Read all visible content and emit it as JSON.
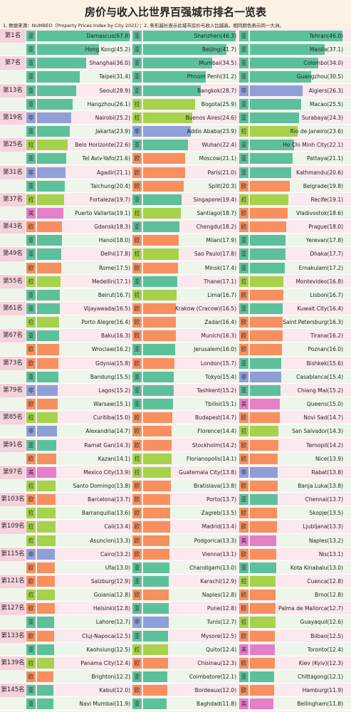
{
  "title": "房价与收入比世界百强城市排名一览表",
  "note": "1, 数据来源：NUMBEO（Property Prices Index by City 2021）；2, 条形越长表示此城市房价与收入比越高，相同颜色表示同一大洲。",
  "region_colors": {
    "亚": "#5cc19a",
    "拉": "#a6d24c",
    "非": "#8f9fd8",
    "欧": "#f7905e",
    "美": "#e57fc8"
  },
  "ranks": [
    "第1名",
    "第7名",
    "第13名",
    "第19名",
    "第25名",
    "第31名",
    "第37名",
    "第43名",
    "第49名",
    "第55名",
    "第61名",
    "第67名",
    "第73名",
    "第79名",
    "第85名",
    "第91名",
    "第97名",
    "第103名",
    "第109名",
    "第115名",
    "第121名",
    "第127名",
    "第133名",
    "第139名",
    "第145名"
  ],
  "rows": [
    [
      {
        "region": "亚",
        "city": "Damascus",
        "value": 67.8
      },
      {
        "region": "亚",
        "city": "Shenzhen",
        "value": 46.3
      },
      {
        "region": "亚",
        "city": "Tehran",
        "value": 46.0,
        "value_label": "46.0"
      }
    ],
    [
      {
        "region": "亚",
        "city": "Hong Kong",
        "value": 45.2
      },
      {
        "region": "亚",
        "city": "Beijing",
        "value": 41.7
      },
      {
        "region": "亚",
        "city": "Manila",
        "value": 37.1
      }
    ],
    [
      {
        "region": "亚",
        "city": "Shanghai",
        "value": 36.0,
        "value_label": "36.0"
      },
      {
        "region": "亚",
        "city": "Mumbai",
        "value": 34.5
      },
      {
        "region": "亚",
        "city": "Colombo",
        "value": 34.0,
        "value_label": "34.0"
      }
    ],
    [
      {
        "region": "亚",
        "city": "Taipei",
        "value": 31.4
      },
      {
        "region": "亚",
        "city": "Phnom Penh",
        "value": 31.2
      },
      {
        "region": "亚",
        "city": "Guangzhou",
        "value": 30.5
      }
    ],
    [
      {
        "region": "亚",
        "city": "Seoul",
        "value": 28.9
      },
      {
        "region": "亚",
        "city": "Bangkok",
        "value": 28.7
      },
      {
        "region": "非",
        "city": "Algiers",
        "value": 26.3
      }
    ],
    [
      {
        "region": "亚",
        "city": "Hangzhou",
        "value": 26.1
      },
      {
        "region": "拉",
        "city": "Bogota",
        "value": 25.9
      },
      {
        "region": "亚",
        "city": "Macao",
        "value": 25.5
      }
    ],
    [
      {
        "region": "非",
        "city": "Nairobi",
        "value": 25.2
      },
      {
        "region": "拉",
        "city": "Buenos Aires",
        "value": 24.6
      },
      {
        "region": "亚",
        "city": "Surabaya",
        "value": 24.3
      }
    ],
    [
      {
        "region": "亚",
        "city": "Jakarta",
        "value": 23.9
      },
      {
        "region": "非",
        "city": "Addis Ababa",
        "value": 23.9
      },
      {
        "region": "拉",
        "city": "Rio de Janeiro",
        "value": 23.6
      }
    ],
    [
      {
        "region": "拉",
        "city": "Belo Horizonte",
        "value": 22.6
      },
      {
        "region": "亚",
        "city": "Wuhan",
        "value": 22.4
      },
      {
        "region": "亚",
        "city": "Ho Chi Minh City",
        "value": 22.1
      }
    ],
    [
      {
        "region": "亚",
        "city": "Tel Aviv-Yafo",
        "value": 21.6
      },
      {
        "region": "欧",
        "city": "Moscow",
        "value": 21.1
      },
      {
        "region": "亚",
        "city": "Pattaya",
        "value": 21.1
      }
    ],
    [
      {
        "region": "非",
        "city": "Agadir",
        "value": 21.1
      },
      {
        "region": "欧",
        "city": "Paris",
        "value": 21.0,
        "value_label": "21.0"
      },
      {
        "region": "亚",
        "city": "Kathmandu",
        "value": 20.6
      }
    ],
    [
      {
        "region": "亚",
        "city": "Taichung",
        "value": 20.4
      },
      {
        "region": "欧",
        "city": "Split",
        "value": 20.3
      },
      {
        "region": "欧",
        "city": "Belgrade",
        "value": 19.8
      }
    ],
    [
      {
        "region": "拉",
        "city": "Fortaleza",
        "value": 19.7
      },
      {
        "region": "亚",
        "city": "Singapore",
        "value": 19.4
      },
      {
        "region": "拉",
        "city": "Recife",
        "value": 19.1
      }
    ],
    [
      {
        "region": "美",
        "city": "Puerto Vallarta",
        "value": 19.1
      },
      {
        "region": "拉",
        "city": "Santiago",
        "value": 18.7
      },
      {
        "region": "欧",
        "city": "Vladivostok",
        "value": 18.6
      }
    ],
    [
      {
        "region": "欧",
        "city": "Gdansk",
        "value": 18.3
      },
      {
        "region": "亚",
        "city": "Chengdu",
        "value": 18.2
      },
      {
        "region": "欧",
        "city": "Prague",
        "value": 18.0,
        "value_label": "18.0"
      }
    ],
    [
      {
        "region": "亚",
        "city": "Hanoi",
        "value": 18.0,
        "value_label": "18.0"
      },
      {
        "region": "欧",
        "city": "Milan",
        "value": 17.9
      },
      {
        "region": "亚",
        "city": "Yerevan",
        "value": 17.8
      }
    ],
    [
      {
        "region": "亚",
        "city": "Delhi",
        "value": 17.8
      },
      {
        "region": "拉",
        "city": "Sao Paulo",
        "value": 17.8
      },
      {
        "region": "亚",
        "city": "Dhaka",
        "value": 17.7
      }
    ],
    [
      {
        "region": "欧",
        "city": "Rome",
        "value": 17.5
      },
      {
        "region": "欧",
        "city": "Minsk",
        "value": 17.4
      },
      {
        "region": "亚",
        "city": "Ernakulam",
        "value": 17.2
      }
    ],
    [
      {
        "region": "拉",
        "city": "Medellin",
        "value": 17.1
      },
      {
        "region": "亚",
        "city": "Thane",
        "value": 17.1
      },
      {
        "region": "拉",
        "city": "Montevideo",
        "value": 16.8
      }
    ],
    [
      {
        "region": "亚",
        "city": "Beirut",
        "value": 16.7
      },
      {
        "region": "拉",
        "city": "Lima",
        "value": 16.7
      },
      {
        "region": "欧",
        "city": "Lisbon",
        "value": 16.7
      }
    ],
    [
      {
        "region": "亚",
        "city": "Vijayawada",
        "value": 16.5
      },
      {
        "region": "欧",
        "city": "Krakow (Cracow)",
        "value": 16.5
      },
      {
        "region": "亚",
        "city": "Kuwait City",
        "value": 16.4
      }
    ],
    [
      {
        "region": "拉",
        "city": "Porto Alegre",
        "value": 16.4
      },
      {
        "region": "欧",
        "city": "Zadar",
        "value": 16.4
      },
      {
        "region": "欧",
        "city": "Saint Petersburg",
        "value": 16.3
      }
    ],
    [
      {
        "region": "亚",
        "city": "Baku",
        "value": 16.3
      },
      {
        "region": "欧",
        "city": "Munich",
        "value": 16.3
      },
      {
        "region": "欧",
        "city": "Tirana",
        "value": 16.2
      }
    ],
    [
      {
        "region": "欧",
        "city": "Wroclaw",
        "value": 16.2
      },
      {
        "region": "亚",
        "city": "Jerusalem",
        "value": 16.0,
        "value_label": "16.0"
      },
      {
        "region": "欧",
        "city": "Poznan",
        "value": 16.0,
        "value_label": "16.0"
      }
    ],
    [
      {
        "region": "欧",
        "city": "Gdynia",
        "value": 15.8
      },
      {
        "region": "欧",
        "city": "London",
        "value": 15.7
      },
      {
        "region": "亚",
        "city": "Bishkek",
        "value": 15.6
      }
    ],
    [
      {
        "region": "亚",
        "city": "Bandung",
        "value": 15.5
      },
      {
        "region": "亚",
        "city": "Tokyo",
        "value": 15.4
      },
      {
        "region": "非",
        "city": "Casablanca",
        "value": 15.4
      }
    ],
    [
      {
        "region": "非",
        "city": "Lagos",
        "value": 15.2
      },
      {
        "region": "亚",
        "city": "Tashkent",
        "value": 15.2
      },
      {
        "region": "亚",
        "city": "Chiang Mai",
        "value": 15.2
      }
    ],
    [
      {
        "region": "欧",
        "city": "Warsaw",
        "value": 15.1
      },
      {
        "region": "亚",
        "city": "Tbilisi",
        "value": 15.1
      },
      {
        "region": "美",
        "city": "Queens",
        "value": 15.0,
        "value_label": "15.0"
      }
    ],
    [
      {
        "region": "拉",
        "city": "Curitiba",
        "value": 15.0,
        "value_label": "15.0"
      },
      {
        "region": "欧",
        "city": "Budapest",
        "value": 14.7
      },
      {
        "region": "欧",
        "city": "Novi Sad",
        "value": 14.7
      }
    ],
    [
      {
        "region": "非",
        "city": "Alexandria",
        "value": 14.7
      },
      {
        "region": "欧",
        "city": "Florence",
        "value": 14.4
      },
      {
        "region": "拉",
        "city": "San Salvador",
        "value": 14.3
      }
    ],
    [
      {
        "region": "亚",
        "city": "Ramat Gan",
        "value": 14.3
      },
      {
        "region": "欧",
        "city": "Stockholm",
        "value": 14.2
      },
      {
        "region": "欧",
        "city": "Ternopil",
        "value": 14.2
      }
    ],
    [
      {
        "region": "欧",
        "city": "Kazan",
        "value": 14.1
      },
      {
        "region": "拉",
        "city": "Florianopolis",
        "value": 14.1
      },
      {
        "region": "欧",
        "city": "Nice",
        "value": 13.9
      }
    ],
    [
      {
        "region": "美",
        "city": "Mexico City",
        "value": 13.9
      },
      {
        "region": "拉",
        "city": "Guatemala City",
        "value": 13.8
      },
      {
        "region": "非",
        "city": "Rabat",
        "value": 13.8
      }
    ],
    [
      {
        "region": "拉",
        "city": "Santo Domingo",
        "value": 13.8
      },
      {
        "region": "欧",
        "city": "Bratislava",
        "value": 13.8
      },
      {
        "region": "欧",
        "city": "Banja Luka",
        "value": 13.8
      }
    ],
    [
      {
        "region": "欧",
        "city": "Barcelona",
        "value": 13.7
      },
      {
        "region": "欧",
        "city": "Porto",
        "value": 13.7
      },
      {
        "region": "亚",
        "city": "Chennai",
        "value": 13.7
      }
    ],
    [
      {
        "region": "拉",
        "city": "Barranquilla",
        "value": 13.6
      },
      {
        "region": "欧",
        "city": "Zagreb",
        "value": 13.5
      },
      {
        "region": "欧",
        "city": "Skopje",
        "value": 13.5
      }
    ],
    [
      {
        "region": "拉",
        "city": "Cali",
        "value": 13.4
      },
      {
        "region": "欧",
        "city": "Madrid",
        "value": 13.4
      },
      {
        "region": "欧",
        "city": "Ljubljana",
        "value": 13.3
      }
    ],
    [
      {
        "region": "拉",
        "city": "Asuncion",
        "value": 13.3
      },
      {
        "region": "欧",
        "city": "Podgorica",
        "value": 13.3
      },
      {
        "region": "美",
        "city": "Naples",
        "value": 13.2
      }
    ],
    [
      {
        "region": "非",
        "city": "Cairo",
        "value": 13.2
      },
      {
        "region": "欧",
        "city": "Vienna",
        "value": 13.1
      },
      {
        "region": "欧",
        "city": "Nis",
        "value": 13.1
      }
    ],
    [
      {
        "region": "欧",
        "city": "Ufa",
        "value": 13.0,
        "value_label": "13.0"
      },
      {
        "region": "亚",
        "city": "Chandigarh",
        "value": 13.0,
        "value_label": "13.0"
      },
      {
        "region": "亚",
        "city": "Kota Kinabalu",
        "value": 13.0,
        "value_label": "13.0"
      }
    ],
    [
      {
        "region": "欧",
        "city": "Salzburg",
        "value": 12.9
      },
      {
        "region": "亚",
        "city": "Karachi",
        "value": 12.9
      },
      {
        "region": "拉",
        "city": "Cuenca",
        "value": 12.8
      }
    ],
    [
      {
        "region": "拉",
        "city": "Goiania",
        "value": 12.8
      },
      {
        "region": "欧",
        "city": "Naples",
        "value": 12.8
      },
      {
        "region": "欧",
        "city": "Brno",
        "value": 12.8
      }
    ],
    [
      {
        "region": "欧",
        "city": "Helsinki",
        "value": 12.8
      },
      {
        "region": "亚",
        "city": "Pune",
        "value": 12.8
      },
      {
        "region": "欧",
        "city": "Palma de Mallorca",
        "value": 12.7
      }
    ],
    [
      {
        "region": "亚",
        "city": "Lahore",
        "value": 12.7
      },
      {
        "region": "非",
        "city": "Tunis",
        "value": 12.7
      },
      {
        "region": "拉",
        "city": "Guayaquil",
        "value": 12.6
      }
    ],
    [
      {
        "region": "欧",
        "city": "Cluj-Napoca",
        "value": 12.5
      },
      {
        "region": "亚",
        "city": "Mysore",
        "value": 12.5
      },
      {
        "region": "欧",
        "city": "Bilbao",
        "value": 12.5
      }
    ],
    [
      {
        "region": "亚",
        "city": "Kaohsiung",
        "value": 12.5
      },
      {
        "region": "拉",
        "city": "Quito",
        "value": 12.4
      },
      {
        "region": "美",
        "city": "Toronto",
        "value": 12.4
      }
    ],
    [
      {
        "region": "拉",
        "city": "Panama City",
        "value": 12.4
      },
      {
        "region": "欧",
        "city": "Chisinau",
        "value": 12.3
      },
      {
        "region": "欧",
        "city": "Kiev (Kyiv)",
        "value": 12.3
      }
    ],
    [
      {
        "region": "欧",
        "city": "Brighton",
        "value": 12.2
      },
      {
        "region": "亚",
        "city": "Coimbatore",
        "value": 12.1
      },
      {
        "region": "亚",
        "city": "Chittagong",
        "value": 12.1
      }
    ],
    [
      {
        "region": "亚",
        "city": "Kabul",
        "value": 12.0,
        "value_label": "12.0"
      },
      {
        "region": "欧",
        "city": "Bordeaux",
        "value": 12.0,
        "value_label": "12.0"
      },
      {
        "region": "欧",
        "city": "Hamburg",
        "value": 11.9
      }
    ],
    [
      {
        "region": "亚",
        "city": "Navi Mumbai",
        "value": 11.9
      },
      {
        "region": "亚",
        "city": "Baghdad",
        "value": 11.8
      },
      {
        "region": "美",
        "city": "Bellingham",
        "value": 11.8
      }
    ]
  ]
}
